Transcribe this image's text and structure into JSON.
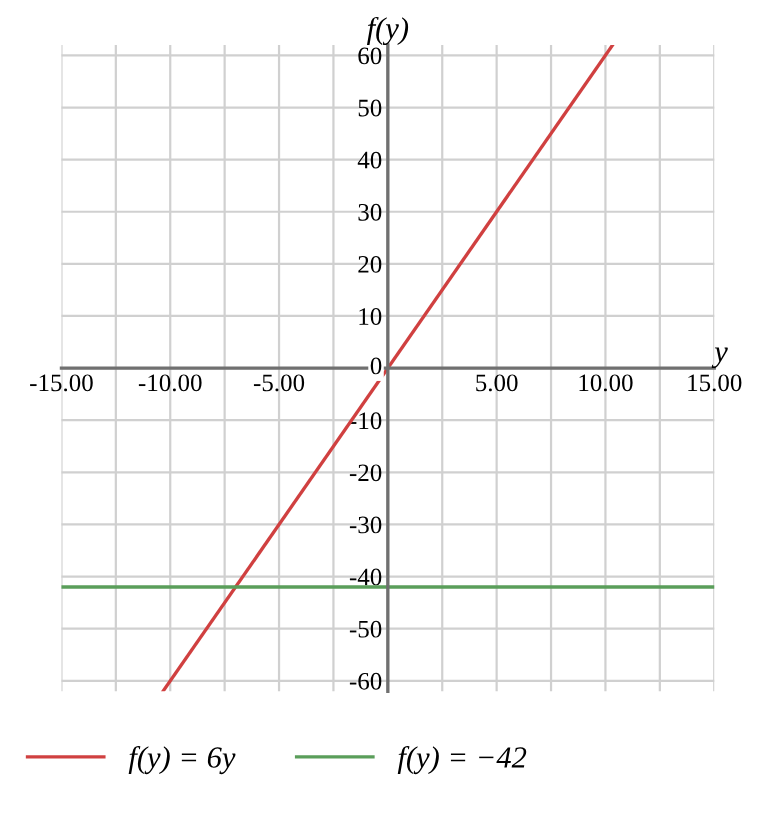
{
  "chart_data": {
    "type": "line",
    "xlabel": "y",
    "ylabel": "f(y)",
    "xlim": [
      -15,
      15
    ],
    "ylim": [
      -62,
      62
    ],
    "xticks": [
      {
        "value": -15,
        "label": "-15.00"
      },
      {
        "value": -12.5,
        "label": null
      },
      {
        "value": -10,
        "label": "-10.00"
      },
      {
        "value": -7.5,
        "label": null
      },
      {
        "value": -5,
        "label": "-5.00"
      },
      {
        "value": -2.5,
        "label": null
      },
      {
        "value": 0,
        "label": null
      },
      {
        "value": 2.5,
        "label": null
      },
      {
        "value": 5,
        "label": "5.00"
      },
      {
        "value": 7.5,
        "label": null
      },
      {
        "value": 10,
        "label": "10.00"
      },
      {
        "value": 12.5,
        "label": null
      },
      {
        "value": 15,
        "label": "15.00"
      }
    ],
    "yticks": [
      -60,
      -50,
      -40,
      -30,
      -20,
      -10,
      0,
      10,
      20,
      30,
      40,
      50,
      60
    ],
    "grid": true,
    "legend": "bottom left",
    "series": [
      {
        "name": "f(y) = 6y",
        "color": "#d04040",
        "x": [
          -10.33,
          10.33
        ],
        "values": [
          -62,
          62
        ]
      },
      {
        "name": "f(y) = −42",
        "color": "#5a9e5a",
        "x": [
          -15,
          15
        ],
        "values": [
          -42,
          -42
        ]
      }
    ]
  }
}
